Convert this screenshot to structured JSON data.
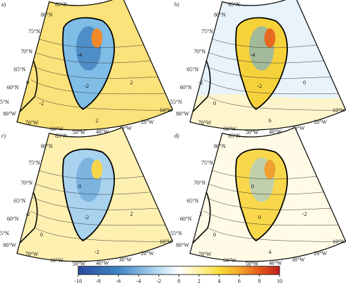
{
  "panels": [
    {
      "label": "a)",
      "lat_labels": [
        "85°N",
        "80°N",
        "75°N",
        "70°N",
        "65°N",
        "60°N",
        "55°N"
      ],
      "lon_labels": [
        "80°W",
        "70°W",
        "60°W",
        "50°W",
        "40°W",
        "30°W",
        "20°W",
        "10°W"
      ],
      "contour_labels": [
        -2,
        0,
        2,
        -4,
        2,
        -2
      ]
    },
    {
      "label": "b)",
      "lat_labels": [
        "85°N",
        "80°N",
        "75°N",
        "70°N",
        "65°N",
        "60°N",
        "55°N"
      ],
      "lon_labels": [
        "80°W",
        "70°W",
        "60°W",
        "50°W",
        "40°W",
        "30°W",
        "20°W",
        "10°W"
      ],
      "contour_labels": [
        0,
        -2,
        6,
        -4,
        0,
        -2
      ]
    },
    {
      "label": "c)",
      "lat_labels": [
        "85°N",
        "80°N",
        "75°N",
        "70°N",
        "65°N",
        "60°N",
        "55°N"
      ],
      "lon_labels": [
        "80°W",
        "70°W",
        "60°W",
        "50°W",
        "40°W",
        "30°W",
        "20°W",
        "10°W"
      ],
      "contour_labels": [
        0,
        -2,
        -2,
        0,
        2,
        -2
      ]
    },
    {
      "label": "d)",
      "lat_labels": [
        "85°N",
        "80°N",
        "75°N",
        "70°N",
        "65°N",
        "60°N",
        "55°N"
      ],
      "lon_labels": [
        "80°W",
        "70°W",
        "60°W",
        "50°W",
        "40°W",
        "30°W",
        "20°W",
        "10°W"
      ],
      "contour_labels": [
        0,
        2,
        4,
        0,
        -2,
        0
      ]
    }
  ],
  "colorbar": {
    "lim": [
      -10,
      10
    ],
    "ticks": [
      -10,
      -8,
      -6,
      -4,
      -2,
      0,
      2,
      4,
      6,
      8,
      10
    ]
  }
}
